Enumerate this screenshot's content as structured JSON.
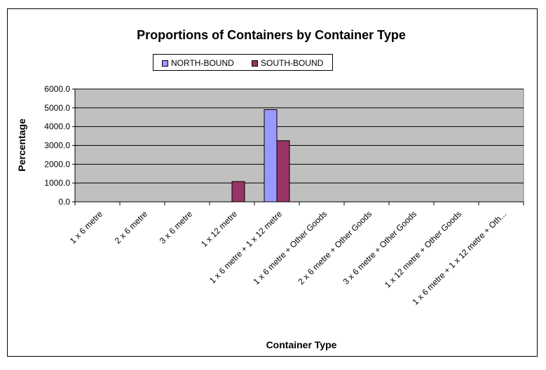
{
  "chart_data": {
    "type": "bar",
    "title": "Proportions of Containers by Container Type",
    "xlabel": "Container Type",
    "ylabel": "Percentage",
    "ylim": [
      0,
      6000
    ],
    "yticks": [
      "0.0",
      "1000.0",
      "2000.0",
      "3000.0",
      "4000.0",
      "5000.0",
      "6000.0"
    ],
    "grid": true,
    "legend_position": "top",
    "categories": [
      "1 x 6 metre",
      "2 x 6 metre",
      "3 x 6 metre",
      "1 x 12 metre",
      "1 x 6 metre + 1 x 12 metre",
      "1 x 6 metre + Other Goods",
      "2 x 6 metre + Other Goods",
      "3 x 6 metre + Other Goods",
      "1 x 12 metre + Other Goods",
      "1 x 6 metre + 1 x 12 metre + Oth..."
    ],
    "series": [
      {
        "name": "NORTH-BOUND",
        "color": "#9999ff",
        "values": [
          0,
          0,
          0,
          0,
          4900,
          0,
          0,
          0,
          0,
          0
        ]
      },
      {
        "name": "SOUTH-BOUND",
        "color": "#993366",
        "values": [
          0,
          0,
          0,
          1080,
          3250,
          0,
          0,
          0,
          0,
          0
        ]
      }
    ],
    "plot_background": "#c0c0c0"
  }
}
